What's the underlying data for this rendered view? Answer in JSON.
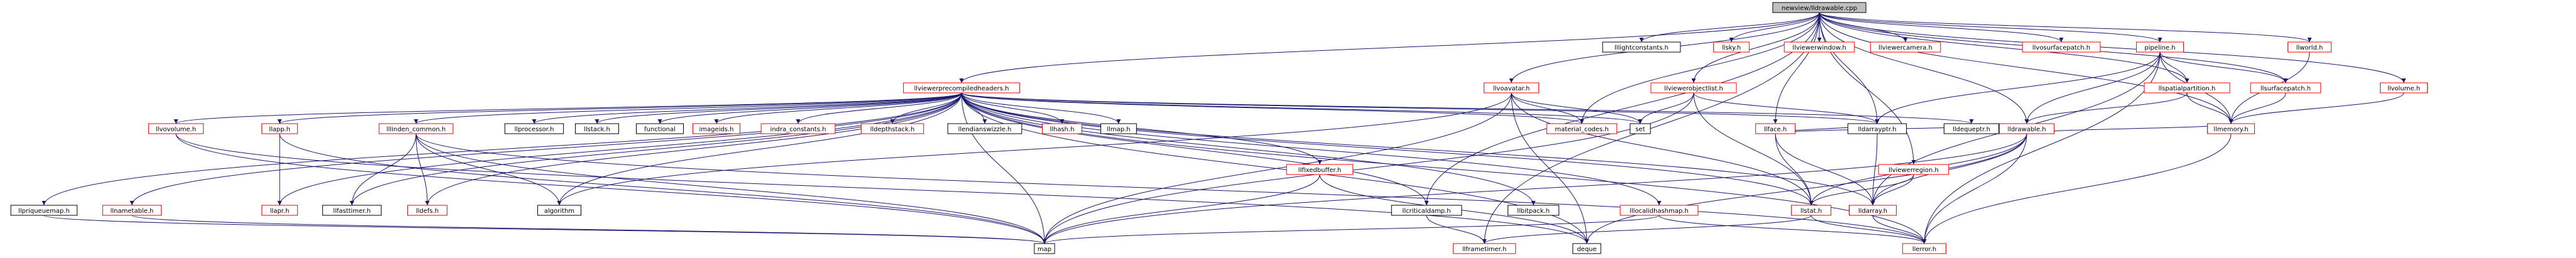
{
  "nodes": [
    {
      "label": "newview/lldrawable.cpp",
      "border": "#000000",
      "fill": "#bfbfbf"
    },
    {
      "label": "llviewerprecompiledheaders.h",
      "border": "#ff0000"
    },
    {
      "label": "llvoavatar.h",
      "border": "#ff0000"
    },
    {
      "label": "lllightconstants.h",
      "border": "#000000"
    },
    {
      "label": "llsky.h",
      "border": "#ff0000"
    },
    {
      "label": "llviewerwindow.h",
      "border": "#ff0000"
    },
    {
      "label": "llviewercamera.h",
      "border": "#ff0000"
    },
    {
      "label": "llvosurfacepatch.h",
      "border": "#ff0000"
    },
    {
      "label": "pipeline.h",
      "border": "#ff0000"
    },
    {
      "label": "llworld.h",
      "border": "#ff0000"
    },
    {
      "label": "llvolume.h",
      "border": "#ff0000"
    },
    {
      "label": "llviewerobjectlist.h",
      "border": "#ff0000"
    },
    {
      "label": "llface.h",
      "border": "#ff0000"
    },
    {
      "label": "llspatialpartition.h",
      "border": "#ff0000"
    },
    {
      "label": "llsurfacepatch.h",
      "border": "#ff0000"
    },
    {
      "label": "llmemory.h",
      "border": "#ff0000"
    },
    {
      "label": "lldrawable.h",
      "border": "#ff0000"
    },
    {
      "label": "llviewerregion.h",
      "border": "#ff0000"
    },
    {
      "label": "lldarrayptr.h",
      "border": "#000000"
    },
    {
      "label": "lldequeptr.h",
      "border": "#000000"
    },
    {
      "label": "material_codes.h",
      "border": "#ff0000"
    },
    {
      "label": "set",
      "border": "#000000"
    },
    {
      "label": "llstat.h",
      "border": "#ff0000"
    },
    {
      "label": "lldarray.h",
      "border": "#ff0000"
    },
    {
      "label": "llerror.h",
      "border": "#ff0000"
    },
    {
      "label": "llframetimer.h",
      "border": "#ff0000"
    },
    {
      "label": "deque",
      "border": "#000000"
    },
    {
      "label": "map",
      "border": "#000000"
    },
    {
      "label": "llcriticaldamp.h",
      "border": "#000000"
    },
    {
      "label": "llbitpack.h",
      "border": "#000000"
    },
    {
      "label": "lllocalidhashmap.h",
      "border": "#ff0000"
    },
    {
      "label": "llfixedbuffer.h",
      "border": "#ff0000"
    },
    {
      "label": "llvovolume.h",
      "border": "#ff0000"
    },
    {
      "label": "llapp.h",
      "border": "#ff0000"
    },
    {
      "label": "lllinden_common.h",
      "border": "#ff0000"
    },
    {
      "label": "llprocessor.h",
      "border": "#000000"
    },
    {
      "label": "llstack.h",
      "border": "#000000"
    },
    {
      "label": "functional",
      "border": "#000000"
    },
    {
      "label": "imageids.h",
      "border": "#ff0000"
    },
    {
      "label": "indra_constants.h",
      "border": "#ff0000"
    },
    {
      "label": "lldepthstack.h",
      "border": "#ff0000"
    },
    {
      "label": "llendianswizzle.h",
      "border": "#000000"
    },
    {
      "label": "llhash.h",
      "border": "#ff0000"
    },
    {
      "label": "llmap.h",
      "border": "#000000"
    },
    {
      "label": "llapr.h",
      "border": "#ff0000"
    },
    {
      "label": "llfasttimer.h",
      "border": "#000000"
    },
    {
      "label": "lldefs.h",
      "border": "#ff0000"
    },
    {
      "label": "algorithm",
      "border": "#000000"
    },
    {
      "label": "llpriqueuemap.h",
      "border": "#000000"
    },
    {
      "label": "llnametable.h",
      "border": "#ff0000"
    }
  ]
}
